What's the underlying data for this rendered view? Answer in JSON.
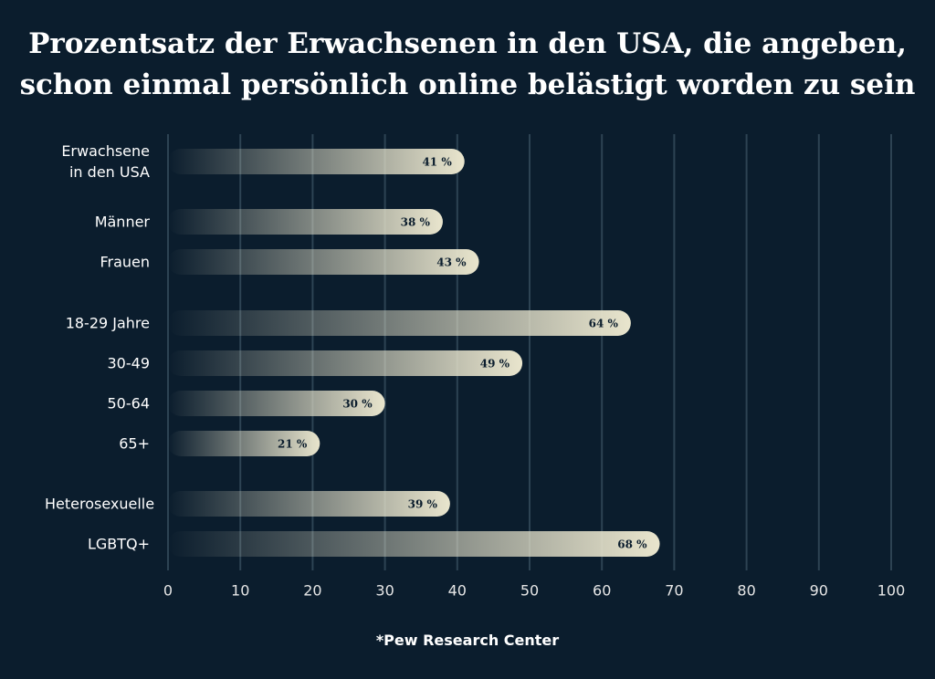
{
  "chart_data": {
    "type": "bar",
    "orientation": "horizontal",
    "title": [
      "Prozentsatz der Erwachsenen in den USA, die angeben,",
      "schon einmal persönlich online belästigt worden zu sein"
    ],
    "categories": [
      "Erwachsene in den USA",
      "Männer",
      "Frauen",
      "18-29 Jahre",
      "30-49",
      "50-64",
      "65+",
      "Heterosexuelle",
      "LGBTQ+"
    ],
    "values": [
      41,
      38,
      43,
      64,
      49,
      30,
      21,
      39,
      68
    ],
    "value_labels": [
      "41 %",
      "38 %",
      "43 %",
      "64 %",
      "49 %",
      "30 %",
      "21 %",
      "39 %",
      "68 %"
    ],
    "color": "#e9e5cd",
    "xlim": [
      0,
      100
    ],
    "xticks": [
      0,
      10,
      20,
      30,
      40,
      50,
      60,
      70,
      80,
      90,
      100
    ],
    "grid": true,
    "source": "*Pew Research Center"
  }
}
